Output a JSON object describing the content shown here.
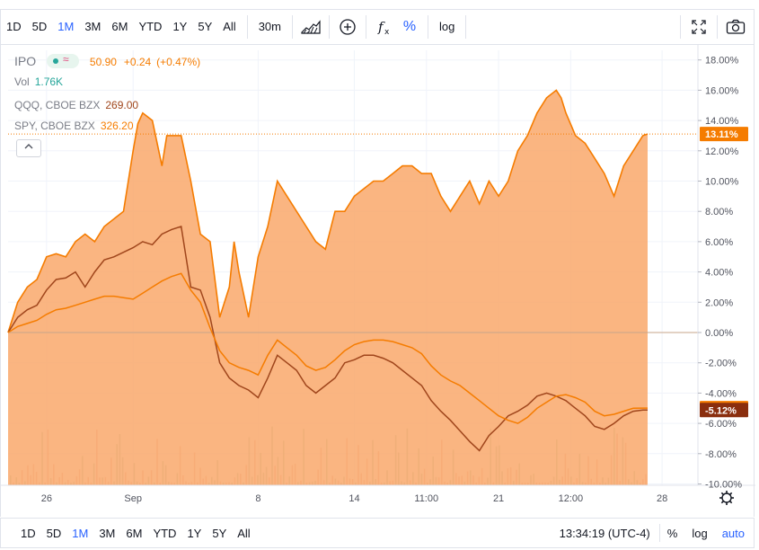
{
  "toolbar": {
    "ranges": [
      "1D",
      "5D",
      "1M",
      "3M",
      "6M",
      "YTD",
      "1Y",
      "5Y",
      "All"
    ],
    "active_range": "1M",
    "interval": "30m",
    "log_label": "log"
  },
  "legend": {
    "symbol": "IPO",
    "price": "50.90",
    "change": "+0.24",
    "change_pct": "(+0.47%)",
    "vol_label": "Vol",
    "vol_value": "1.76K",
    "compare": [
      {
        "label": "QQQ, CBOE BZX",
        "value": "269.00",
        "color": "#a0461c"
      },
      {
        "label": "SPY, CBOE BZX",
        "value": "326.20",
        "color": "#f57c00"
      }
    ]
  },
  "bottom": {
    "ranges": [
      "1D",
      "5D",
      "1M",
      "3M",
      "6M",
      "YTD",
      "1Y",
      "5Y",
      "All"
    ],
    "active_range": "1M",
    "clock": "13:34:19 (UTC-4)",
    "pct_label": "%",
    "log_label": "log",
    "auto_label": "auto"
  },
  "chart_data": {
    "type": "area",
    "y_axis_ticks": [
      "18.00%",
      "16.00%",
      "14.00%",
      "12.00%",
      "10.00%",
      "8.00%",
      "6.00%",
      "4.00%",
      "2.00%",
      "0.00%",
      "-2.00%",
      "-4.00%",
      "-6.00%",
      "-8.00%",
      "-10.00%"
    ],
    "ylim": [
      -10,
      18.5
    ],
    "x_axis_ticks": [
      {
        "label": "26",
        "x": 4
      },
      {
        "label": "Sep",
        "x": 13
      },
      {
        "label": "8",
        "x": 26
      },
      {
        "label": "14",
        "x": 36
      },
      {
        "label": "11:00",
        "x": 43.5
      },
      {
        "label": "21",
        "x": 51
      },
      {
        "label": "12:00",
        "x": 58.5
      },
      {
        "label": "28",
        "x": 68
      }
    ],
    "xlim": [
      0,
      68.5
    ],
    "price_labels": [
      {
        "text": "13.11%",
        "value": 13.11,
        "color": "#f57c00"
      },
      {
        "text": "-4.99%",
        "value": -4.99,
        "color": "#f57c00"
      },
      {
        "text": "-5.12%",
        "value": -5.12,
        "color": "#8a2e0e"
      }
    ],
    "series": [
      {
        "name": "IPO",
        "color": "#f57c00",
        "fill": "#f9a86b",
        "x": [
          0,
          1,
          2,
          3,
          4,
          5,
          6,
          7,
          8,
          9,
          10,
          11,
          12,
          13,
          13.5,
          14,
          15,
          16,
          16.5,
          17,
          18,
          19,
          20,
          21,
          22,
          23,
          23.5,
          24,
          25,
          26,
          27,
          28,
          29,
          30,
          31,
          32,
          33,
          34,
          35,
          36,
          37,
          38,
          39,
          40,
          41,
          42,
          43,
          44,
          45,
          46,
          47,
          48,
          49,
          50,
          51,
          52,
          53,
          54,
          55,
          56,
          57,
          57.5,
          58,
          59,
          60,
          61,
          62,
          63,
          64,
          65,
          66,
          66.5
        ],
        "y": [
          0,
          2,
          3,
          3.5,
          5,
          5.2,
          5,
          6,
          6.5,
          6,
          7,
          7.5,
          8,
          12,
          13.8,
          14.5,
          14,
          11,
          13,
          13,
          13,
          10,
          6.5,
          6,
          1,
          3,
          6,
          4,
          1,
          5,
          7,
          10,
          9,
          8,
          7,
          6,
          5.5,
          8,
          8,
          9,
          9.5,
          10,
          10,
          10.5,
          11,
          11,
          10.5,
          10.5,
          9,
          8,
          9,
          10,
          8.5,
          10,
          9,
          10,
          12,
          13,
          14.5,
          15.5,
          16,
          15.5,
          14.5,
          13,
          12.5,
          11.5,
          10.5,
          9,
          11,
          12,
          13,
          13.11
        ]
      },
      {
        "name": "QQQ",
        "color": "#a0461c",
        "x": [
          0,
          1,
          2,
          3,
          4,
          5,
          6,
          7,
          8,
          9,
          10,
          11,
          12,
          13,
          14,
          15,
          16,
          17,
          18,
          19,
          20,
          21,
          22,
          23,
          24,
          25,
          26,
          27,
          28,
          29,
          30,
          31,
          32,
          33,
          34,
          35,
          36,
          37,
          38,
          39,
          40,
          41,
          42,
          43,
          44,
          45,
          46,
          47,
          48,
          49,
          50,
          51,
          52,
          53,
          54,
          55,
          56,
          57,
          58,
          59,
          60,
          61,
          62,
          63,
          64,
          65,
          66,
          66.5
        ],
        "y": [
          0,
          1,
          1.5,
          1.8,
          2.8,
          3.5,
          3.6,
          4,
          3,
          4,
          4.8,
          5,
          5.3,
          5.6,
          6,
          5.8,
          6.5,
          6.8,
          7,
          3,
          2.8,
          1,
          -2,
          -3,
          -3.5,
          -3.8,
          -4.3,
          -3,
          -1.5,
          -2,
          -2.5,
          -3.5,
          -4,
          -3.5,
          -3,
          -2,
          -1.8,
          -1.5,
          -1.5,
          -1.7,
          -2,
          -2.5,
          -3,
          -3.5,
          -4.5,
          -5.2,
          -5.8,
          -6.5,
          -7.2,
          -7.8,
          -6.8,
          -6.2,
          -5.5,
          -5.2,
          -4.8,
          -4.2,
          -4,
          -4.2,
          -4.5,
          -5,
          -5.5,
          -6.2,
          -6.4,
          -6,
          -5.5,
          -5.2,
          -5.12,
          -5.12
        ]
      },
      {
        "name": "SPY",
        "color": "#f57c00",
        "x": [
          0,
          1,
          2,
          3,
          4,
          5,
          6,
          7,
          8,
          9,
          10,
          11,
          12,
          13,
          14,
          15,
          16,
          17,
          18,
          19,
          20,
          21,
          22,
          23,
          24,
          25,
          26,
          27,
          28,
          29,
          30,
          31,
          32,
          33,
          34,
          35,
          36,
          37,
          38,
          39,
          40,
          41,
          42,
          43,
          44,
          45,
          46,
          47,
          48,
          49,
          50,
          51,
          52,
          53,
          54,
          55,
          56,
          57,
          58,
          59,
          60,
          61,
          62,
          63,
          64,
          65,
          66,
          66.5
        ],
        "y": [
          0,
          0.4,
          0.6,
          0.8,
          1.2,
          1.5,
          1.6,
          1.8,
          2,
          2.2,
          2.4,
          2.4,
          2.3,
          2.2,
          2.6,
          3,
          3.4,
          3.7,
          3.9,
          2.8,
          2,
          0.3,
          -1.2,
          -2,
          -2.3,
          -2.5,
          -2.8,
          -1.5,
          -0.5,
          -1,
          -1.5,
          -2.2,
          -2.5,
          -2.3,
          -1.8,
          -1.2,
          -0.8,
          -0.6,
          -0.5,
          -0.5,
          -0.6,
          -0.8,
          -1,
          -1.4,
          -2.2,
          -2.8,
          -3.2,
          -3.5,
          -4,
          -4.5,
          -5,
          -5.5,
          -5.8,
          -6,
          -5.6,
          -5,
          -4.6,
          -4.2,
          -4.1,
          -4.3,
          -4.6,
          -5.2,
          -5.5,
          -5.4,
          -5.2,
          -5,
          -4.99,
          -4.99
        ]
      }
    ],
    "volume_bars_max_pct": 0.14,
    "grid": true
  }
}
